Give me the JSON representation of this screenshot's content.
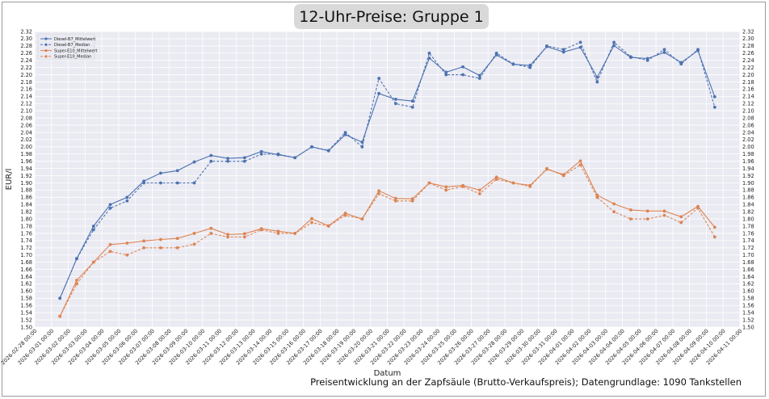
{
  "chart_data": {
    "type": "line",
    "title": "12-Uhr-Preise: Gruppe 1",
    "xlabel": "Datum",
    "ylabel": "EUR/l",
    "ylim": [
      1.5,
      2.32
    ],
    "yticks": [
      "1.50",
      "1.52",
      "1.54",
      "1.56",
      "1.58",
      "1.60",
      "1.62",
      "1.64",
      "1.66",
      "1.68",
      "1.70",
      "1.72",
      "1.74",
      "1.76",
      "1.78",
      "1.80",
      "1.82",
      "1.84",
      "1.86",
      "1.88",
      "1.90",
      "1.92",
      "1.94",
      "1.96",
      "1.98",
      "2.00",
      "2.02",
      "2.04",
      "2.06",
      "2.08",
      "2.10",
      "2.12",
      "2.14",
      "2.16",
      "2.18",
      "2.20",
      "2.22",
      "2.24",
      "2.26",
      "2.28",
      "2.30",
      "2.32"
    ],
    "xticks": [
      "2026-02-28 00:00",
      "2026-03-01 00:00",
      "2026-03-02 00:00",
      "2026-03-03 00:00",
      "2026-03-04 00:00",
      "2026-03-05 00:00",
      "2026-03-06 00:00",
      "2026-03-07 00:00",
      "2026-03-08 00:00",
      "2026-03-09 00:00",
      "2026-03-10 00:00",
      "2026-03-11 00:00",
      "2026-03-12 00:00",
      "2026-03-13 00:00",
      "2026-03-14 00:00",
      "2026-03-15 00:00",
      "2026-03-16 00:00",
      "2026-03-17 00:00",
      "2026-03-18 00:00",
      "2026-03-19 00:00",
      "2026-03-20 00:00",
      "2026-03-21 00:00",
      "2026-03-22 00:00",
      "2026-03-23 00:00",
      "2026-03-24 00:00",
      "2026-03-25 00:00",
      "2026-03-26 00:00",
      "2026-03-27 00:00",
      "2026-03-28 00:00",
      "2026-03-29 00:00",
      "2026-03-30 00:00",
      "2026-03-31 00:00",
      "2026-04-01 00:00",
      "2026-04-02 00:00",
      "2026-04-03 00:00",
      "2026-04-04 00:00",
      "2026-04-05 00:00",
      "2026-04-06 00:00",
      "2026-04-07 00:00",
      "2026-04-08 00:00",
      "2026-04-09 00:00",
      "2026-04-10 00:00",
      "2026-04-11 00:00"
    ],
    "grid": true,
    "legend_position": "top-left",
    "series": [
      {
        "name": "Diesel-B7_Mittelwert",
        "color": "#4c72b0",
        "style": "solid",
        "marker": "circle",
        "points": [
          [
            "2026-03-01 12:00",
            1.58
          ],
          [
            "2026-03-02 12:00",
            1.69
          ],
          [
            "2026-03-03 12:00",
            1.78
          ],
          [
            "2026-03-04 12:00",
            1.84
          ],
          [
            "2026-03-05 12:00",
            1.86
          ],
          [
            "2026-03-06 12:00",
            1.905
          ],
          [
            "2026-03-07 12:00",
            1.927
          ],
          [
            "2026-03-08 12:00",
            1.934
          ],
          [
            "2026-03-09 12:00",
            1.958
          ],
          [
            "2026-03-10 12:00",
            1.976
          ],
          [
            "2026-03-11 12:00",
            1.968
          ],
          [
            "2026-03-12 12:00",
            1.97
          ],
          [
            "2026-03-13 12:00",
            1.987
          ],
          [
            "2026-03-14 12:00",
            1.978
          ],
          [
            "2026-03-15 12:00",
            1.97
          ],
          [
            "2026-03-16 12:00",
            2.0
          ],
          [
            "2026-03-17 12:00",
            1.989
          ],
          [
            "2026-03-18 12:00",
            2.034
          ],
          [
            "2026-03-19 12:00",
            2.013
          ],
          [
            "2026-03-20 12:00",
            2.148
          ],
          [
            "2026-03-21 12:00",
            2.132
          ],
          [
            "2026-03-22 12:00",
            2.127
          ],
          [
            "2026-03-23 12:00",
            2.246
          ],
          [
            "2026-03-24 12:00",
            2.207
          ],
          [
            "2026-03-25 12:00",
            2.222
          ],
          [
            "2026-03-26 12:00",
            2.198
          ],
          [
            "2026-03-27 12:00",
            2.255
          ],
          [
            "2026-03-28 12:00",
            2.229
          ],
          [
            "2026-03-29 12:00",
            2.226
          ],
          [
            "2026-03-30 12:00",
            2.278
          ],
          [
            "2026-03-31 12:00",
            2.263
          ],
          [
            "2026-04-01 12:00",
            2.276
          ],
          [
            "2026-04-02 12:00",
            2.193
          ],
          [
            "2026-04-03 12:00",
            2.281
          ],
          [
            "2026-04-04 12:00",
            2.248
          ],
          [
            "2026-04-05 12:00",
            2.245
          ],
          [
            "2026-04-06 12:00",
            2.262
          ],
          [
            "2026-04-07 12:00",
            2.234
          ],
          [
            "2026-04-08 12:00",
            2.267
          ],
          [
            "2026-04-09 12:00",
            2.139
          ]
        ]
      },
      {
        "name": "Diesel-B7_Median",
        "color": "#4c72b0",
        "style": "dashed",
        "marker": "circle",
        "points": [
          [
            "2026-03-01 12:00",
            1.58
          ],
          [
            "2026-03-02 12:00",
            1.69
          ],
          [
            "2026-03-03 12:00",
            1.77
          ],
          [
            "2026-03-04 12:00",
            1.83
          ],
          [
            "2026-03-05 12:00",
            1.85
          ],
          [
            "2026-03-06 12:00",
            1.9
          ],
          [
            "2026-03-07 12:00",
            1.9
          ],
          [
            "2026-03-08 12:00",
            1.9
          ],
          [
            "2026-03-09 12:00",
            1.9
          ],
          [
            "2026-03-10 12:00",
            1.96
          ],
          [
            "2026-03-11 12:00",
            1.96
          ],
          [
            "2026-03-12 12:00",
            1.96
          ],
          [
            "2026-03-13 12:00",
            1.98
          ],
          [
            "2026-03-14 12:00",
            1.98
          ],
          [
            "2026-03-15 12:00",
            1.97
          ],
          [
            "2026-03-16 12:00",
            2.0
          ],
          [
            "2026-03-17 12:00",
            1.99
          ],
          [
            "2026-03-18 12:00",
            2.04
          ],
          [
            "2026-03-19 12:00",
            2.0
          ],
          [
            "2026-03-20 12:00",
            2.19
          ],
          [
            "2026-03-21 12:00",
            2.12
          ],
          [
            "2026-03-22 12:00",
            2.11
          ],
          [
            "2026-03-23 12:00",
            2.26
          ],
          [
            "2026-03-24 12:00",
            2.2
          ],
          [
            "2026-03-25 12:00",
            2.2
          ],
          [
            "2026-03-26 12:00",
            2.19
          ],
          [
            "2026-03-27 12:00",
            2.26
          ],
          [
            "2026-03-28 12:00",
            2.23
          ],
          [
            "2026-03-29 12:00",
            2.22
          ],
          [
            "2026-03-30 12:00",
            2.28
          ],
          [
            "2026-03-31 12:00",
            2.27
          ],
          [
            "2026-04-01 12:00",
            2.29
          ],
          [
            "2026-04-02 12:00",
            2.18
          ],
          [
            "2026-04-03 12:00",
            2.29
          ],
          [
            "2026-04-04 12:00",
            2.25
          ],
          [
            "2026-04-05 12:00",
            2.24
          ],
          [
            "2026-04-06 12:00",
            2.27
          ],
          [
            "2026-04-07 12:00",
            2.23
          ],
          [
            "2026-04-08 12:00",
            2.27
          ],
          [
            "2026-04-09 12:00",
            2.11
          ]
        ]
      },
      {
        "name": "Super-E10_Mittelwert",
        "color": "#dd8452",
        "style": "solid",
        "marker": "circle",
        "points": [
          [
            "2026-03-01 12:00",
            1.53
          ],
          [
            "2026-03-02 12:00",
            1.63
          ],
          [
            "2026-03-03 12:00",
            1.68
          ],
          [
            "2026-03-04 12:00",
            1.729
          ],
          [
            "2026-03-05 12:00",
            1.733
          ],
          [
            "2026-03-06 12:00",
            1.739
          ],
          [
            "2026-03-07 12:00",
            1.743
          ],
          [
            "2026-03-08 12:00",
            1.746
          ],
          [
            "2026-03-09 12:00",
            1.76
          ],
          [
            "2026-03-10 12:00",
            1.774
          ],
          [
            "2026-03-11 12:00",
            1.757
          ],
          [
            "2026-03-12 12:00",
            1.759
          ],
          [
            "2026-03-13 12:00",
            1.773
          ],
          [
            "2026-03-14 12:00",
            1.766
          ],
          [
            "2026-03-15 12:00",
            1.76
          ],
          [
            "2026-03-16 12:00",
            1.801
          ],
          [
            "2026-03-17 12:00",
            1.781
          ],
          [
            "2026-03-18 12:00",
            1.816
          ],
          [
            "2026-03-19 12:00",
            1.8
          ],
          [
            "2026-03-20 12:00",
            1.878
          ],
          [
            "2026-03-21 12:00",
            1.857
          ],
          [
            "2026-03-22 12:00",
            1.856
          ],
          [
            "2026-03-23 12:00",
            1.9
          ],
          [
            "2026-03-24 12:00",
            1.889
          ],
          [
            "2026-03-25 12:00",
            1.893
          ],
          [
            "2026-03-26 12:00",
            1.88
          ],
          [
            "2026-03-27 12:00",
            1.916
          ],
          [
            "2026-03-28 12:00",
            1.9
          ],
          [
            "2026-03-29 12:00",
            1.893
          ],
          [
            "2026-03-30 12:00",
            1.938
          ],
          [
            "2026-03-31 12:00",
            1.923
          ],
          [
            "2026-04-01 12:00",
            1.961
          ],
          [
            "2026-04-02 12:00",
            1.866
          ],
          [
            "2026-04-03 12:00",
            1.842
          ],
          [
            "2026-04-04 12:00",
            1.825
          ],
          [
            "2026-04-05 12:00",
            1.822
          ],
          [
            "2026-04-06 12:00",
            1.822
          ],
          [
            "2026-04-07 12:00",
            1.806
          ],
          [
            "2026-04-08 12:00",
            1.835
          ],
          [
            "2026-04-09 12:00",
            1.777
          ]
        ]
      },
      {
        "name": "Super-E10_Median",
        "color": "#dd8452",
        "style": "dashed",
        "marker": "circle",
        "points": [
          [
            "2026-03-01 12:00",
            1.53
          ],
          [
            "2026-03-02 12:00",
            1.62
          ],
          [
            "2026-03-03 12:00",
            1.68
          ],
          [
            "2026-03-04 12:00",
            1.71
          ],
          [
            "2026-03-05 12:00",
            1.7
          ],
          [
            "2026-03-06 12:00",
            1.72
          ],
          [
            "2026-03-07 12:00",
            1.72
          ],
          [
            "2026-03-08 12:00",
            1.72
          ],
          [
            "2026-03-09 12:00",
            1.73
          ],
          [
            "2026-03-10 12:00",
            1.76
          ],
          [
            "2026-03-11 12:00",
            1.75
          ],
          [
            "2026-03-12 12:00",
            1.75
          ],
          [
            "2026-03-13 12:00",
            1.77
          ],
          [
            "2026-03-14 12:00",
            1.76
          ],
          [
            "2026-03-15 12:00",
            1.76
          ],
          [
            "2026-03-16 12:00",
            1.79
          ],
          [
            "2026-03-17 12:00",
            1.78
          ],
          [
            "2026-03-18 12:00",
            1.81
          ],
          [
            "2026-03-19 12:00",
            1.8
          ],
          [
            "2026-03-20 12:00",
            1.87
          ],
          [
            "2026-03-21 12:00",
            1.85
          ],
          [
            "2026-03-22 12:00",
            1.85
          ],
          [
            "2026-03-23 12:00",
            1.9
          ],
          [
            "2026-03-24 12:00",
            1.88
          ],
          [
            "2026-03-25 12:00",
            1.89
          ],
          [
            "2026-03-26 12:00",
            1.87
          ],
          [
            "2026-03-27 12:00",
            1.91
          ],
          [
            "2026-03-28 12:00",
            1.9
          ],
          [
            "2026-03-29 12:00",
            1.89
          ],
          [
            "2026-03-30 12:00",
            1.94
          ],
          [
            "2026-03-31 12:00",
            1.92
          ],
          [
            "2026-04-01 12:00",
            1.95
          ],
          [
            "2026-04-02 12:00",
            1.86
          ],
          [
            "2026-04-03 12:00",
            1.82
          ],
          [
            "2026-04-04 12:00",
            1.8
          ],
          [
            "2026-04-05 12:00",
            1.8
          ],
          [
            "2026-04-06 12:00",
            1.81
          ],
          [
            "2026-04-07 12:00",
            1.79
          ],
          [
            "2026-04-08 12:00",
            1.83
          ],
          [
            "2026-04-09 12:00",
            1.75
          ]
        ]
      }
    ]
  },
  "footer": "Preisentwicklung an der Zapfsäule (Brutto-Verkaufspreis); Datengrundlage: 1090 Tankstellen"
}
